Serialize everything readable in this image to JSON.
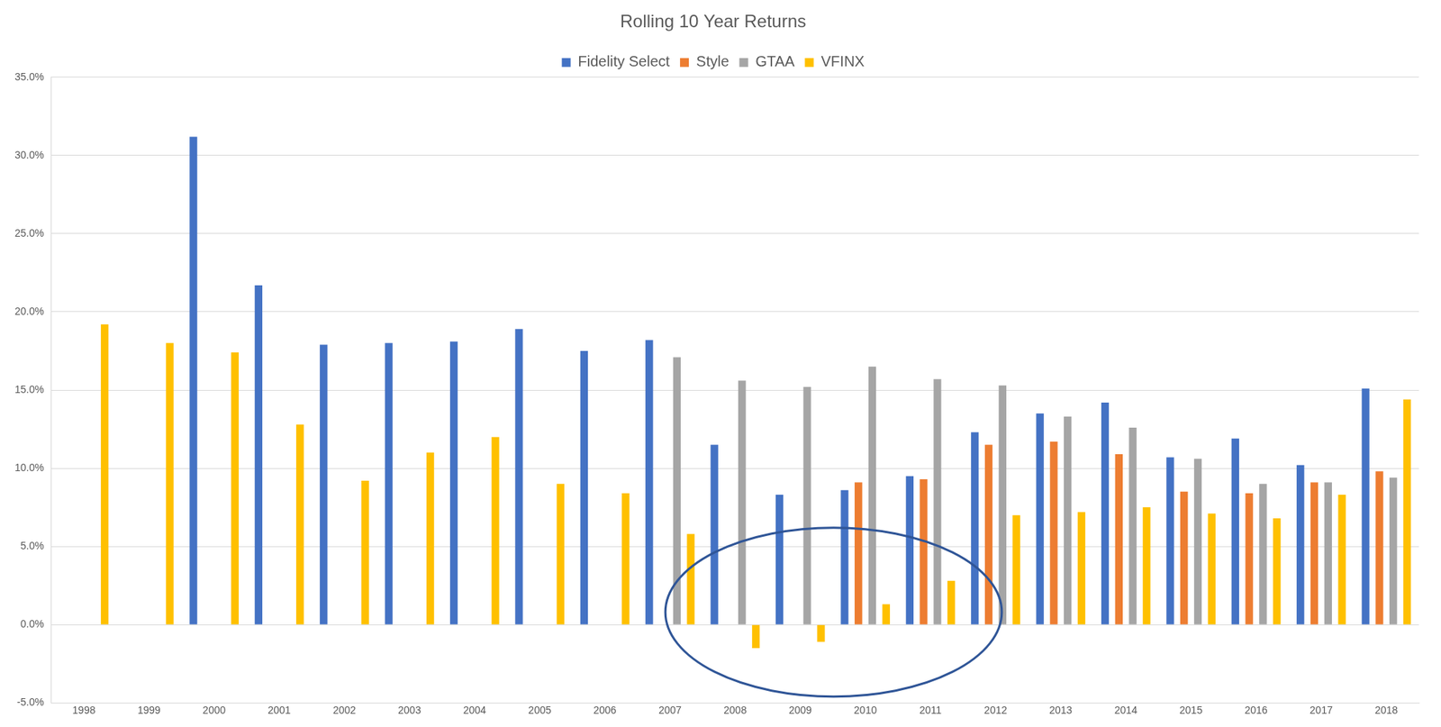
{
  "chart_data": {
    "type": "bar",
    "title": "Rolling 10 Year Returns",
    "categories": [
      "1998",
      "1999",
      "2000",
      "2001",
      "2002",
      "2003",
      "2004",
      "2005",
      "2006",
      "2007",
      "2008",
      "2009",
      "2010",
      "2011",
      "2012",
      "2013",
      "2014",
      "2015",
      "2016",
      "2017",
      "2018"
    ],
    "series": [
      {
        "name": "Fidelity Select",
        "color": "#4472c4",
        "values": [
          null,
          null,
          31.2,
          21.7,
          17.9,
          18.0,
          18.1,
          18.9,
          17.5,
          18.2,
          11.5,
          8.3,
          8.6,
          9.5,
          12.3,
          13.5,
          14.2,
          10.7,
          11.9,
          10.2,
          15.1
        ]
      },
      {
        "name": "Style",
        "color": "#ed7d31",
        "values": [
          null,
          null,
          null,
          null,
          null,
          null,
          null,
          null,
          null,
          null,
          null,
          null,
          9.1,
          9.3,
          11.5,
          11.7,
          10.9,
          8.5,
          8.4,
          9.1,
          9.8
        ]
      },
      {
        "name": "GTAA",
        "color": "#a5a5a5",
        "values": [
          null,
          null,
          null,
          null,
          null,
          null,
          null,
          null,
          null,
          17.1,
          15.6,
          15.2,
          16.5,
          15.7,
          15.3,
          13.3,
          12.6,
          10.6,
          9.0,
          9.1,
          9.4
        ]
      },
      {
        "name": "VFINX",
        "color": "#ffc000",
        "values": [
          19.2,
          18.0,
          17.4,
          12.8,
          9.2,
          11.0,
          12.0,
          9.0,
          8.4,
          5.8,
          -1.5,
          -1.1,
          1.3,
          2.8,
          7.0,
          7.2,
          7.5,
          7.1,
          6.8,
          8.3,
          14.4
        ]
      }
    ],
    "ylim": [
      -5,
      35
    ],
    "yticks": [
      {
        "value": -5,
        "label": "-5.0%"
      },
      {
        "value": 0,
        "label": "0.0%"
      },
      {
        "value": 5,
        "label": "5.0%"
      },
      {
        "value": 10,
        "label": "10.0%"
      },
      {
        "value": 15,
        "label": "15.0%"
      },
      {
        "value": 20,
        "label": "20.0%"
      },
      {
        "value": 25,
        "label": "25.0%"
      },
      {
        "value": 30,
        "label": "30.0%"
      },
      {
        "value": 35,
        "label": "35.0%"
      }
    ],
    "grid": true,
    "legend": "top"
  }
}
